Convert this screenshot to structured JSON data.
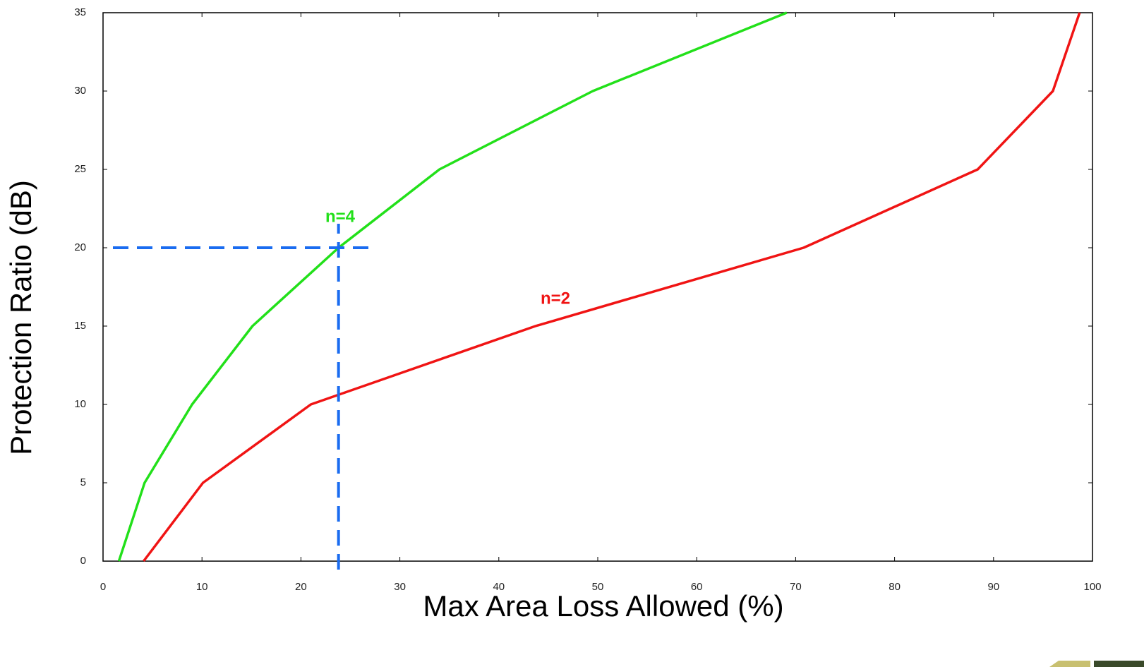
{
  "chart_data": {
    "type": "line",
    "x_label": "Max Area Loss Allowed (%)",
    "y_label": "Protection Ratio (dB)",
    "xlim": [
      0,
      100
    ],
    "ylim": [
      0,
      35
    ],
    "xticks": [
      0,
      10,
      20,
      30,
      40,
      50,
      60,
      70,
      80,
      90,
      100
    ],
    "yticks": [
      0,
      5,
      10,
      15,
      20,
      25,
      30,
      35
    ],
    "series": [
      {
        "name": "n=4",
        "color": "#22e01a",
        "x": [
          1.6,
          4.2,
          9.0,
          15.1,
          23.8,
          34.0,
          49.5,
          69.1
        ],
        "values": [
          0,
          5,
          10,
          15,
          20,
          25,
          30,
          35
        ]
      },
      {
        "name": "n=2",
        "color": "#f01414",
        "x": [
          4.1,
          10.1,
          21.0,
          43.7,
          70.8,
          88.4,
          96.0,
          98.7
        ],
        "values": [
          0,
          5,
          10,
          15,
          20,
          25,
          30,
          35
        ]
      }
    ],
    "guide": {
      "x": 23.8,
      "y": 20,
      "color": "#1a6cf0"
    }
  }
}
